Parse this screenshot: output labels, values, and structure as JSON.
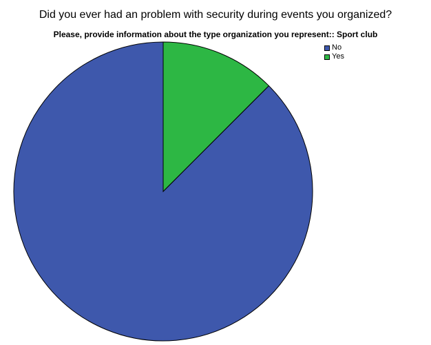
{
  "chart_data": {
    "type": "pie",
    "title": "Did you ever had an problem with security during events you organized?",
    "subtitle": "Please, provide information about the type organization you represent:: Sport club",
    "categories": [
      "No",
      "Yes"
    ],
    "values": [
      87.5,
      12.5
    ],
    "colors": [
      "#3e58ac",
      "#2db744"
    ],
    "legend_position": "top-right",
    "slice_order": "counterclockwise from 12 o'clock"
  }
}
